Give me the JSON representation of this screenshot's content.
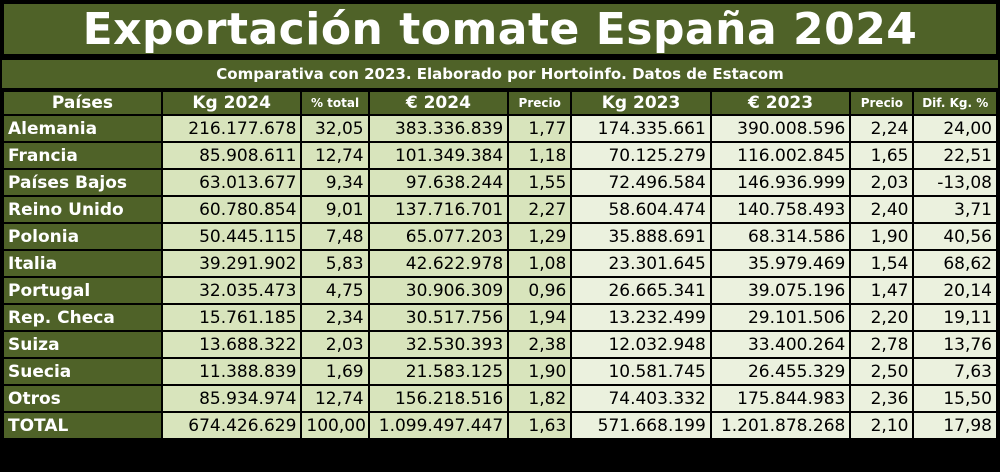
{
  "title": "Exportación tomate España 2024",
  "subtitle": "Comparativa con 2023. Elaborado por Hortoinfo. Datos de Estacom",
  "headers": [
    "Países",
    "Kg 2024",
    "% total",
    "€ 2024",
    "Precio",
    "Kg 2023",
    "€ 2023",
    "Precio",
    "Dif. Kg. %"
  ],
  "rows": [
    [
      "Alemania",
      "216.177.678",
      "32,05",
      "383.336.839",
      "1,77",
      "174.335.661",
      "390.008.596",
      "2,24",
      "24,00"
    ],
    [
      "Francia",
      "85.908.611",
      "12,74",
      "101.349.384",
      "1,18",
      "70.125.279",
      "116.002.845",
      "1,65",
      "22,51"
    ],
    [
      "Países Bajos",
      "63.013.677",
      "9,34",
      "97.638.244",
      "1,55",
      "72.496.584",
      "146.936.999",
      "2,03",
      "-13,08"
    ],
    [
      "Reino Unido",
      "60.780.854",
      "9,01",
      "137.716.701",
      "2,27",
      "58.604.474",
      "140.758.493",
      "2,40",
      "3,71"
    ],
    [
      "Polonia",
      "50.445.115",
      "7,48",
      "65.077.203",
      "1,29",
      "35.888.691",
      "68.314.586",
      "1,90",
      "40,56"
    ],
    [
      "Italia",
      "39.291.902",
      "5,83",
      "42.622.978",
      "1,08",
      "23.301.645",
      "35.979.469",
      "1,54",
      "68,62"
    ],
    [
      "Portugal",
      "32.035.473",
      "4,75",
      "30.906.309",
      "0,96",
      "26.665.341",
      "39.075.196",
      "1,47",
      "20,14"
    ],
    [
      "Rep. Checa",
      "15.761.185",
      "2,34",
      "30.517.756",
      "1,94",
      "13.232.499",
      "29.101.506",
      "2,20",
      "19,11"
    ],
    [
      "Suiza",
      "13.688.322",
      "2,03",
      "32.530.393",
      "2,38",
      "12.032.948",
      "33.400.264",
      "2,78",
      "13,76"
    ],
    [
      "Suecia",
      "11.388.839",
      "1,69",
      "21.583.125",
      "1,90",
      "10.581.745",
      "26.455.329",
      "2,50",
      "7,63"
    ],
    [
      "Otros",
      "85.934.974",
      "12,74",
      "156.218.516",
      "1,82",
      "74.403.332",
      "175.844.983",
      "2,36",
      "15,50"
    ],
    [
      "TOTAL",
      "674.426.629",
      "100,00",
      "1.099.497.447",
      "1,63",
      "571.668.199",
      "1.201.878.268",
      "2,10",
      "17,98"
    ]
  ],
  "colors": {
    "header_green": "#4f6228",
    "cell_2024": "#d8e4bc",
    "cell_2023": "#ebf1de",
    "text_header": "#ffffff"
  }
}
